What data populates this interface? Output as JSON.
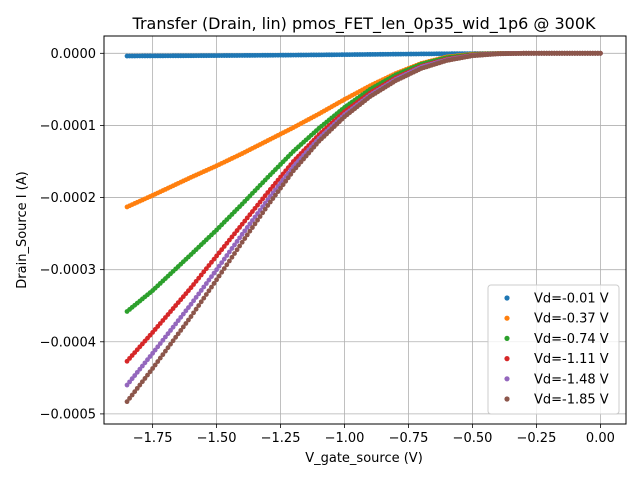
{
  "chart_data": {
    "type": "scatter",
    "title": "Transfer (Drain, lin) pmos_FET_len_0p35_wid_1p6 @ 300K",
    "xlabel": "V_gate_source (V)",
    "ylabel": "Drain_Source I (A)",
    "xlim": [
      -1.94,
      0.1
    ],
    "ylim": [
      -0.000514,
      2.4e-05
    ],
    "xticks": [
      -1.75,
      -1.5,
      -1.25,
      -1.0,
      -0.75,
      -0.5,
      -0.25,
      0.0
    ],
    "xtick_labels": [
      "−1.75",
      "−1.50",
      "−1.25",
      "−1.00",
      "−0.75",
      "−0.50",
      "−0.25",
      "0.00"
    ],
    "yticks": [
      0.0,
      -0.0001,
      -0.0002,
      -0.0003,
      -0.0004,
      -0.0005
    ],
    "ytick_labels": [
      "0.0000",
      "−0.0001",
      "−0.0002",
      "−0.0003",
      "−0.0004",
      "−0.0005"
    ],
    "grid": true,
    "legend_position": "lower-right",
    "x_range": [
      -1.85,
      0.0
    ],
    "series": [
      {
        "name": "Vd=-0.01 V",
        "color": "#1f77b4",
        "points": [
          [
            -1.85,
            -3.8e-06
          ],
          [
            -1.75,
            -3.6e-06
          ],
          [
            -1.6,
            -3.4e-06
          ],
          [
            -1.4,
            -3e-06
          ],
          [
            -1.2,
            -2.5e-06
          ],
          [
            -1.0,
            -1.9e-06
          ],
          [
            -0.8,
            -1.2e-06
          ],
          [
            -0.6,
            -6e-07
          ],
          [
            -0.4,
            -2e-07
          ],
          [
            -0.2,
            0.0
          ],
          [
            0.0,
            0.0
          ]
        ]
      },
      {
        "name": "Vd=-0.37 V",
        "color": "#ff7f0e",
        "points": [
          [
            -1.85,
            -0.000213
          ],
          [
            -1.75,
            -0.000197
          ],
          [
            -1.6,
            -0.000172
          ],
          [
            -1.5,
            -0.000156
          ],
          [
            -1.4,
            -0.000139
          ],
          [
            -1.3,
            -0.000121
          ],
          [
            -1.2,
            -0.000103
          ],
          [
            -1.1,
            -8.4e-05
          ],
          [
            -1.0,
            -6.4e-05
          ],
          [
            -0.9,
            -4.5e-05
          ],
          [
            -0.8,
            -2.8e-05
          ],
          [
            -0.7,
            -1.4e-05
          ],
          [
            -0.6,
            -5e-06
          ],
          [
            -0.5,
            -1.2e-06
          ],
          [
            -0.4,
            -2e-07
          ],
          [
            -0.3,
            0.0
          ],
          [
            0.0,
            0.0
          ]
        ]
      },
      {
        "name": "Vd=-0.74 V",
        "color": "#2ca02c",
        "points": [
          [
            -1.85,
            -0.000358
          ],
          [
            -1.75,
            -0.000329
          ],
          [
            -1.6,
            -0.000279
          ],
          [
            -1.5,
            -0.000245
          ],
          [
            -1.4,
            -0.000209
          ],
          [
            -1.3,
            -0.000172
          ],
          [
            -1.2,
            -0.000136
          ],
          [
            -1.1,
            -0.000104
          ],
          [
            -1.0,
            -7.5e-05
          ],
          [
            -0.9,
            -5e-05
          ],
          [
            -0.8,
            -3e-05
          ],
          [
            -0.7,
            -1.5e-05
          ],
          [
            -0.6,
            -6e-06
          ],
          [
            -0.5,
            -1.8e-06
          ],
          [
            -0.4,
            -4e-07
          ],
          [
            -0.3,
            0.0
          ],
          [
            0.0,
            0.0
          ]
        ]
      },
      {
        "name": "Vd=-1.11 V",
        "color": "#d62728",
        "points": [
          [
            -1.85,
            -0.000427
          ],
          [
            -1.75,
            -0.000387
          ],
          [
            -1.6,
            -0.000325
          ],
          [
            -1.5,
            -0.000281
          ],
          [
            -1.4,
            -0.000237
          ],
          [
            -1.3,
            -0.000193
          ],
          [
            -1.2,
            -0.00015
          ],
          [
            -1.1,
            -0.000113
          ],
          [
            -1.0,
            -8.1e-05
          ],
          [
            -0.9,
            -5.5e-05
          ],
          [
            -0.8,
            -3.4e-05
          ],
          [
            -0.7,
            -1.8e-05
          ],
          [
            -0.6,
            -8e-06
          ],
          [
            -0.5,
            -2.5e-06
          ],
          [
            -0.4,
            -6e-07
          ],
          [
            -0.3,
            0.0
          ],
          [
            0.0,
            0.0
          ]
        ]
      },
      {
        "name": "Vd=-1.48 V",
        "color": "#9467bd",
        "points": [
          [
            -1.85,
            -0.00046
          ],
          [
            -1.75,
            -0.000416
          ],
          [
            -1.6,
            -0.000348
          ],
          [
            -1.5,
            -0.0003
          ],
          [
            -1.4,
            -0.000251
          ],
          [
            -1.3,
            -0.000203
          ],
          [
            -1.2,
            -0.000157
          ],
          [
            -1.1,
            -0.000118
          ],
          [
            -1.0,
            -8.5e-05
          ],
          [
            -0.9,
            -5.8e-05
          ],
          [
            -0.8,
            -3.6e-05
          ],
          [
            -0.7,
            -1.9e-05
          ],
          [
            -0.6,
            -9e-06
          ],
          [
            -0.5,
            -3e-06
          ],
          [
            -0.4,
            -7e-07
          ],
          [
            -0.3,
            0.0
          ],
          [
            0.0,
            0.0
          ]
        ]
      },
      {
        "name": "Vd=-1.85 V",
        "color": "#8c564b",
        "points": [
          [
            -1.85,
            -0.000483
          ],
          [
            -1.75,
            -0.000437
          ],
          [
            -1.6,
            -0.000365
          ],
          [
            -1.5,
            -0.000314
          ],
          [
            -1.4,
            -0.000262
          ],
          [
            -1.3,
            -0.000211
          ],
          [
            -1.2,
            -0.000163
          ],
          [
            -1.1,
            -0.000122
          ],
          [
            -1.0,
            -8.8e-05
          ],
          [
            -0.9,
            -6e-05
          ],
          [
            -0.8,
            -3.8e-05
          ],
          [
            -0.7,
            -2.1e-05
          ],
          [
            -0.6,
            -1e-05
          ],
          [
            -0.5,
            -3.5e-06
          ],
          [
            -0.4,
            -8e-07
          ],
          [
            -0.3,
            0.0
          ],
          [
            0.0,
            0.0
          ]
        ]
      }
    ]
  }
}
